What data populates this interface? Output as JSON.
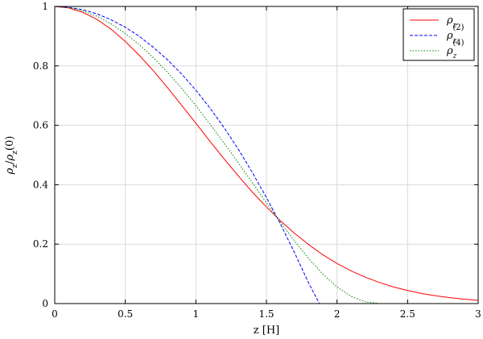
{
  "chart_data": {
    "type": "line",
    "xlabel": "z [H]",
    "ylabel_parts": {
      "rho": "ρ",
      "sub": "z",
      "slash": "/",
      "suffix": "(0)"
    },
    "xlim": [
      0,
      3
    ],
    "ylim": [
      0,
      1
    ],
    "x_ticks": [
      "0",
      "0.5",
      "1",
      "1.5",
      "2",
      "2.5",
      "3"
    ],
    "y_ticks": [
      "0",
      "0.2",
      "0.4",
      "0.6",
      "0.8",
      "1"
    ],
    "grid": true,
    "legend_position": "top-right",
    "series": [
      {
        "name": "ρz",
        "label_main": "ρ",
        "label_sub": "z",
        "label_sup": "",
        "color": "#ff0000",
        "style": "solid",
        "x": [
          0,
          0.1,
          0.2,
          0.3,
          0.4,
          0.5,
          0.6,
          0.7,
          0.8,
          0.9,
          1.0,
          1.1,
          1.2,
          1.3,
          1.4,
          1.5,
          1.6,
          1.7,
          1.8,
          1.9,
          2.0,
          2.1,
          2.2,
          2.3,
          2.4,
          2.5,
          2.6,
          2.7,
          2.8,
          2.9,
          3.0
        ],
        "y": [
          1.0,
          0.995,
          0.98,
          0.956,
          0.923,
          0.882,
          0.835,
          0.783,
          0.726,
          0.667,
          0.607,
          0.546,
          0.487,
          0.43,
          0.375,
          0.325,
          0.278,
          0.236,
          0.198,
          0.164,
          0.135,
          0.11,
          0.089,
          0.071,
          0.056,
          0.044,
          0.034,
          0.026,
          0.02,
          0.015,
          0.011
        ]
      },
      {
        "name": "ρz(2)",
        "label_main": "ρ",
        "label_sub": "z",
        "label_sup": "(2)",
        "color": "#0000ff",
        "style": "dashed",
        "x": [
          0,
          0.1,
          0.2,
          0.3,
          0.4,
          0.5,
          0.6,
          0.7,
          0.8,
          0.9,
          1.0,
          1.1,
          1.2,
          1.3,
          1.4,
          1.5,
          1.6,
          1.7,
          1.8,
          1.875
        ],
        "y": [
          1.0,
          0.997,
          0.989,
          0.975,
          0.955,
          0.93,
          0.899,
          0.862,
          0.82,
          0.772,
          0.718,
          0.658,
          0.592,
          0.52,
          0.441,
          0.357,
          0.267,
          0.17,
          0.068,
          0.0
        ]
      },
      {
        "name": "ρz(4)",
        "label_main": "ρ",
        "label_sub": "z",
        "label_sup": "(4)",
        "color": "#008000",
        "style": "dotted",
        "x": [
          0,
          0.1,
          0.2,
          0.3,
          0.4,
          0.5,
          0.6,
          0.7,
          0.8,
          0.9,
          1.0,
          1.1,
          1.2,
          1.3,
          1.4,
          1.5,
          1.6,
          1.7,
          1.8,
          1.9,
          2.0,
          2.1,
          2.2,
          2.3
        ],
        "y": [
          1.0,
          0.996,
          0.985,
          0.967,
          0.941,
          0.909,
          0.871,
          0.827,
          0.778,
          0.724,
          0.666,
          0.604,
          0.54,
          0.474,
          0.407,
          0.339,
          0.273,
          0.21,
          0.151,
          0.099,
          0.056,
          0.024,
          0.006,
          0.0
        ]
      }
    ]
  }
}
